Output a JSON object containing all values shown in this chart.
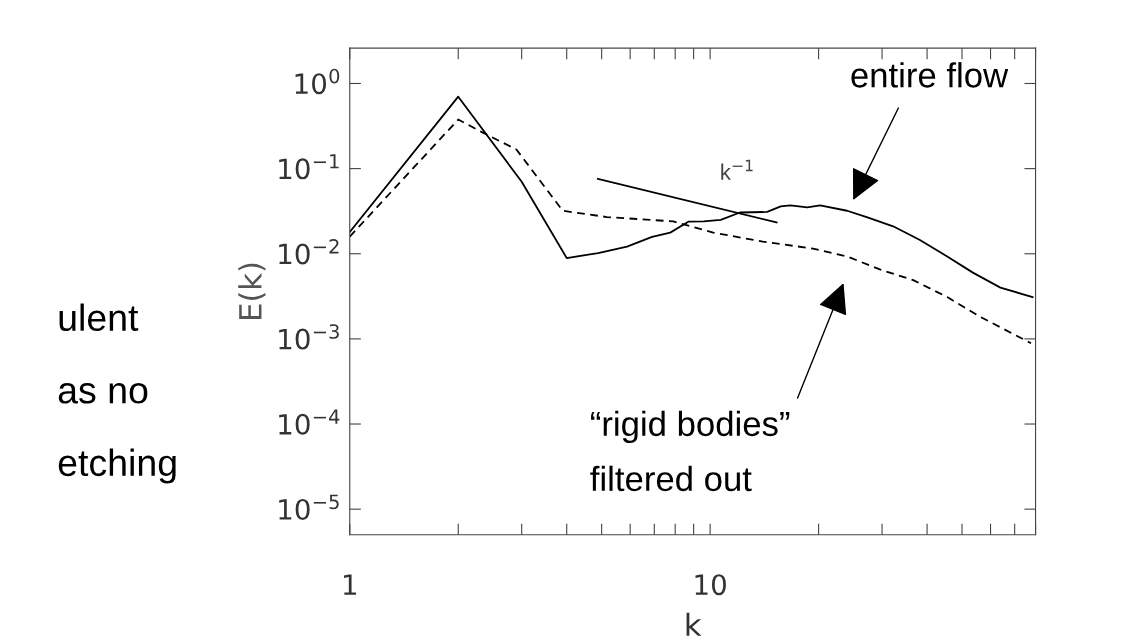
{
  "chart_data": {
    "type": "line",
    "xlabel": "k",
    "ylabel": "E(k)",
    "log": "xy",
    "xlim": [
      1,
      80
    ],
    "ylim": [
      5e-06,
      2.6
    ],
    "xticks": [
      1,
      {
        "value": 2,
        "label": null
      },
      {
        "value": 3,
        "label": null
      },
      {
        "value": 4,
        "label": null
      },
      {
        "value": 5,
        "label": null
      },
      {
        "value": 6,
        "label": null
      },
      {
        "value": 7,
        "label": null
      },
      {
        "value": 8,
        "label": null
      },
      {
        "value": 9,
        "label": null
      },
      10,
      {
        "value": 20,
        "label": null
      },
      {
        "value": 30,
        "label": null
      },
      {
        "value": 40,
        "label": null
      },
      {
        "value": 50,
        "label": null
      },
      {
        "value": 60,
        "label": null
      },
      {
        "value": 70,
        "label": null
      },
      {
        "value": 80,
        "label": null
      }
    ],
    "yticks": [
      {
        "value": 1,
        "label": "10$^{0}$"
      },
      {
        "value": 0.1,
        "label": "10$^{−1}$"
      },
      {
        "value": 0.01,
        "label": "10$^{−2}$"
      },
      {
        "value": 0.001,
        "label": "10$^{−3}$"
      },
      {
        "value": 0.0001,
        "label": "10$^{−4}$"
      },
      {
        "value": 1e-05,
        "label": "10$^{−5}$"
      }
    ],
    "series": [
      {
        "color": "#000000",
        "line_style": "solid",
        "x": [
          1,
          2,
          3,
          4,
          4.89,
          5.88,
          6.9,
          7.75,
          8.7,
          9.6,
          10.7,
          12.1,
          14.4,
          15.7,
          16.7,
          18.6,
          20.2,
          24,
          27.2,
          32.2,
          38.1,
          45.5,
          53.6,
          63.9,
          78.5
        ],
        "values": [
          0.018,
          0.7,
          0.07,
          0.0089,
          0.0102,
          0.0121,
          0.0158,
          0.0177,
          0.0238,
          0.024,
          0.025,
          0.0305,
          0.031,
          0.036,
          0.037,
          0.035,
          0.037,
          0.032,
          0.027,
          0.021,
          0.0146,
          0.0093,
          0.006,
          0.004,
          0.0031
        ]
      },
      {
        "color": "#000000",
        "line_style": "dashed",
        "x": [
          1,
          2,
          2.34,
          2.9,
          3.9,
          5.17,
          7.9,
          10.2,
          14,
          19.3,
          24,
          29.7,
          36.6,
          45.5,
          56.4,
          77.7
        ],
        "values": [
          0.0159,
          0.377,
          0.265,
          0.168,
          0.032,
          0.027,
          0.024,
          0.0177,
          0.0139,
          0.0115,
          0.0093,
          0.0065,
          0.0049,
          0.0031,
          0.0018,
          0.00089
        ]
      },
      {
        "color": "#000000",
        "line_style": "solid",
        "x": [
          4.88,
          15.3
        ],
        "values": [
          0.076,
          0.0233
        ]
      }
    ],
    "annotations": [
      "k$^{−1}$",
      "entire flow",
      "“rigid bodies”\nfiltered out",
      "ulent",
      "as no",
      "etching"
    ]
  }
}
